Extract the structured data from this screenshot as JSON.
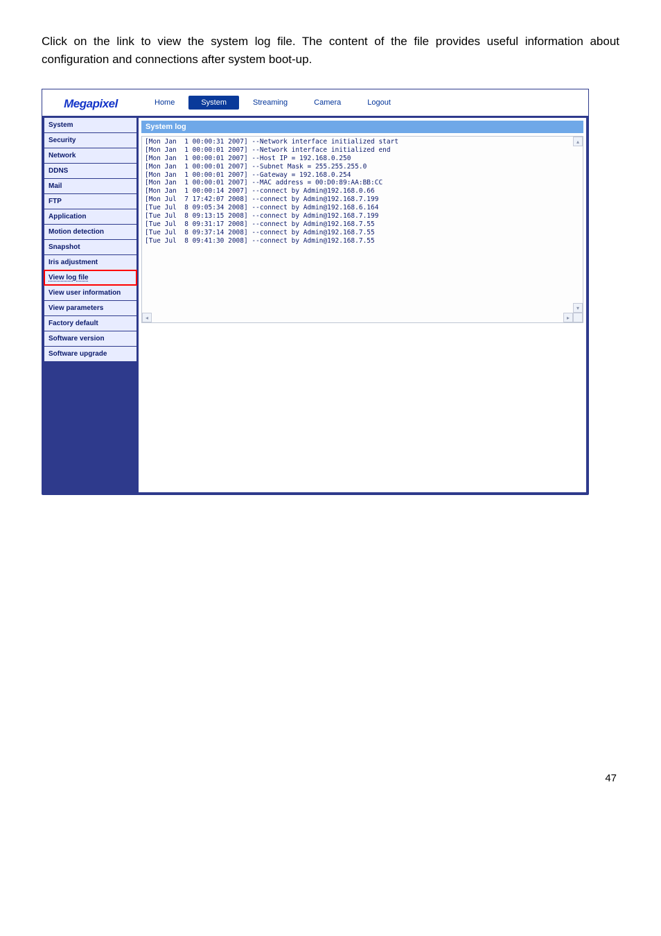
{
  "intro_text": "Click on the link to view the system log file. The content of the file provides useful information about configuration and connections after system boot-up.",
  "logo": "Megapixel",
  "topnav": {
    "home": "Home",
    "system": "System",
    "streaming": "Streaming",
    "camera": "Camera",
    "logout": "Logout"
  },
  "sidebar": {
    "system": "System",
    "security": "Security",
    "network": "Network",
    "ddns": "DDNS",
    "mail": "Mail",
    "ftp": "FTP",
    "application": "Application",
    "motion": "Motion detection",
    "snapshot": "Snapshot",
    "iris": "Iris adjustment",
    "viewlog": "View log file",
    "userinfo": "View user information",
    "params": "View parameters",
    "factory": "Factory default",
    "swver": "Software version",
    "swupg": "Software upgrade"
  },
  "panel_title": "System log",
  "log_lines": [
    "[Mon Jan  1 00:00:31 2007] --Network interface initialized start",
    "[Mon Jan  1 00:00:01 2007] --Network interface initialized end",
    "[Mon Jan  1 00:00:01 2007] --Host IP = 192.168.0.250",
    "[Mon Jan  1 00:00:01 2007] --Subnet Mask = 255.255.255.0",
    "[Mon Jan  1 00:00:01 2007] --Gateway = 192.168.0.254",
    "[Mon Jan  1 00:00:01 2007] --MAC address = 00:D0:89:AA:BB:CC",
    "[Mon Jan  1 00:00:14 2007] --connect by Admin@192.168.0.66",
    "[Mon Jul  7 17:42:07 2008] --connect by Admin@192.168.7.199",
    "[Tue Jul  8 09:05:34 2008] --connect by Admin@192.168.6.164",
    "[Tue Jul  8 09:13:15 2008] --connect by Admin@192.168.7.199",
    "[Tue Jul  8 09:31:17 2008] --connect by Admin@192.168.7.55",
    "[Tue Jul  8 09:37:14 2008] --connect by Admin@192.168.7.55",
    "[Tue Jul  8 09:41:30 2008] --connect by Admin@192.168.7.55"
  ],
  "page_number": "47",
  "colors": {
    "brand_blue": "#1435c8",
    "frame_navy": "#2e3a8c",
    "sidebar_bg": "#e8ecff",
    "sidebar_text": "#0b1a6b",
    "topnav_link": "#003399",
    "topnav_active_bg": "#0a3a9a",
    "panel_title_bg": "#6fa8e8",
    "highlight_outline": "#ff0000"
  }
}
